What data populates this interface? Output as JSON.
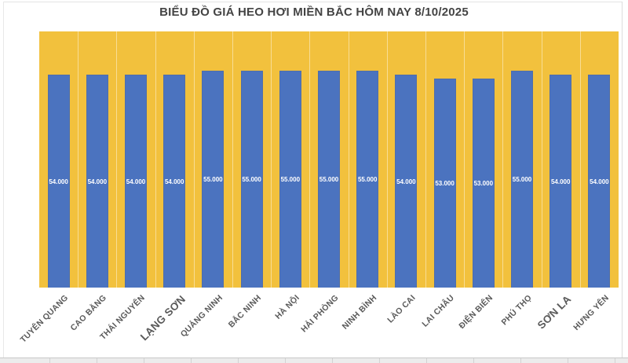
{
  "colors": {
    "plot_background": "#f2c13d",
    "bar_fill": "#4b73bf",
    "grid_line": "rgba(255,255,255,0.45)",
    "title_text": "#444444",
    "axis_label_text": "#595959",
    "value_label_text": "#ffffff"
  },
  "chart_data": {
    "type": "bar",
    "title": "BIỂU ĐỒ GIÁ HEO HƠI MIỀN BẮC HÔM NAY 8/10/2025",
    "categories": [
      "TUYÊN QUANG",
      "CAO BẰNG",
      "THÁI NGUYÊN",
      "LẠNG SƠN",
      "QUẢNG NINH",
      "BẮC NINH",
      "HÀ NỘI",
      "HẢI PHÒNG",
      "NINH BÌNH",
      "LÀO CAI",
      "LAI CHÂU",
      "ĐIỆN BIÊN",
      "PHÚ THỌ",
      "SƠN LA",
      "HƯNG YÊN"
    ],
    "values": [
      54000,
      54000,
      54000,
      54000,
      55000,
      55000,
      55000,
      55000,
      55000,
      54000,
      53000,
      53000,
      55000,
      54000,
      54000
    ],
    "value_labels": [
      "54.000",
      "54.000",
      "54.000",
      "54.000",
      "55.000",
      "55.000",
      "55.000",
      "55.000",
      "55.000",
      "54.000",
      "53.000",
      "53.000",
      "55.000",
      "54.000",
      "54.000"
    ],
    "xlabel": "",
    "ylabel": "",
    "ylim": [
      0,
      65000
    ],
    "legend": "none",
    "data_labels": "inside-center",
    "grid": "vertical-category-separators",
    "large_label_indices": [
      3,
      13
    ]
  }
}
